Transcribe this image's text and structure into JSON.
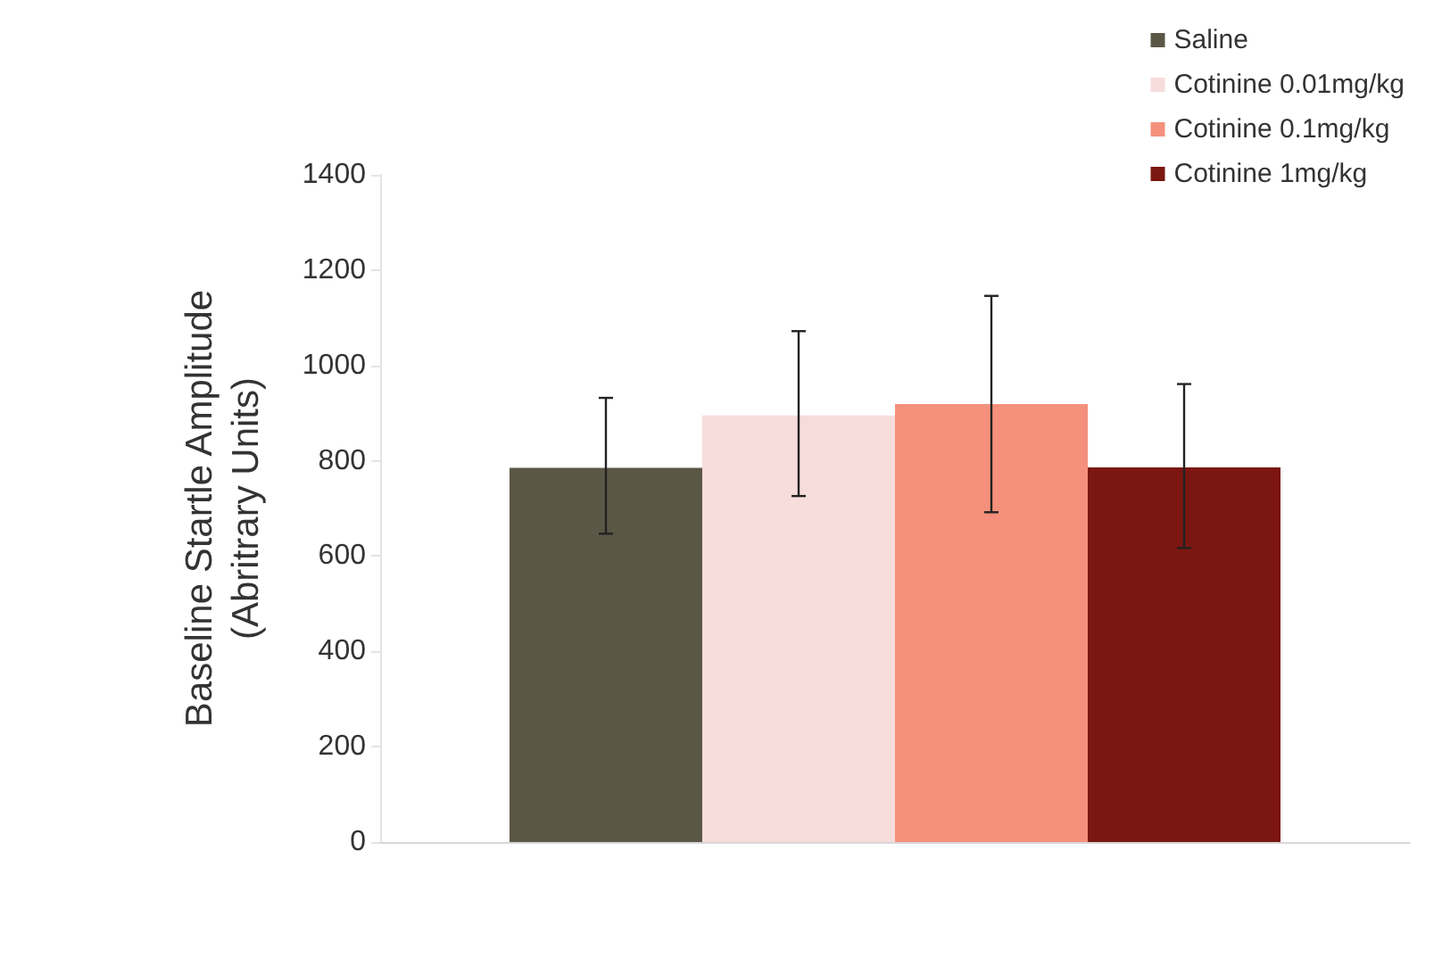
{
  "chart_data": {
    "type": "bar",
    "ylabel": "Baseline Startle Amplitude\n(Abritrary Units)",
    "categories": [
      null
    ],
    "series": [
      {
        "name": "Saline",
        "color": "#5a5747",
        "values": [
          785
        ],
        "errors": [
          [
            647,
            932
          ]
        ]
      },
      {
        "name": "Cotinine 0.01mg/kg",
        "color": "#f7dcdc",
        "values": [
          895
        ],
        "errors": [
          [
            726,
            1072
          ]
        ]
      },
      {
        "name": "Cotinine 0.1mg/kg",
        "color": "#f4907c",
        "values": [
          919
        ],
        "errors": [
          [
            692,
            1146
          ]
        ]
      },
      {
        "name": "Cotinine 1mg/kg",
        "color": "#7b1610",
        "values": [
          786
        ],
        "errors": [
          [
            617,
            961
          ]
        ]
      }
    ],
    "ylim": [
      0,
      1400
    ],
    "yticks": [
      0,
      200,
      400,
      600,
      800,
      1000,
      1200,
      1400
    ],
    "legend": "top right",
    "grid": false
  }
}
